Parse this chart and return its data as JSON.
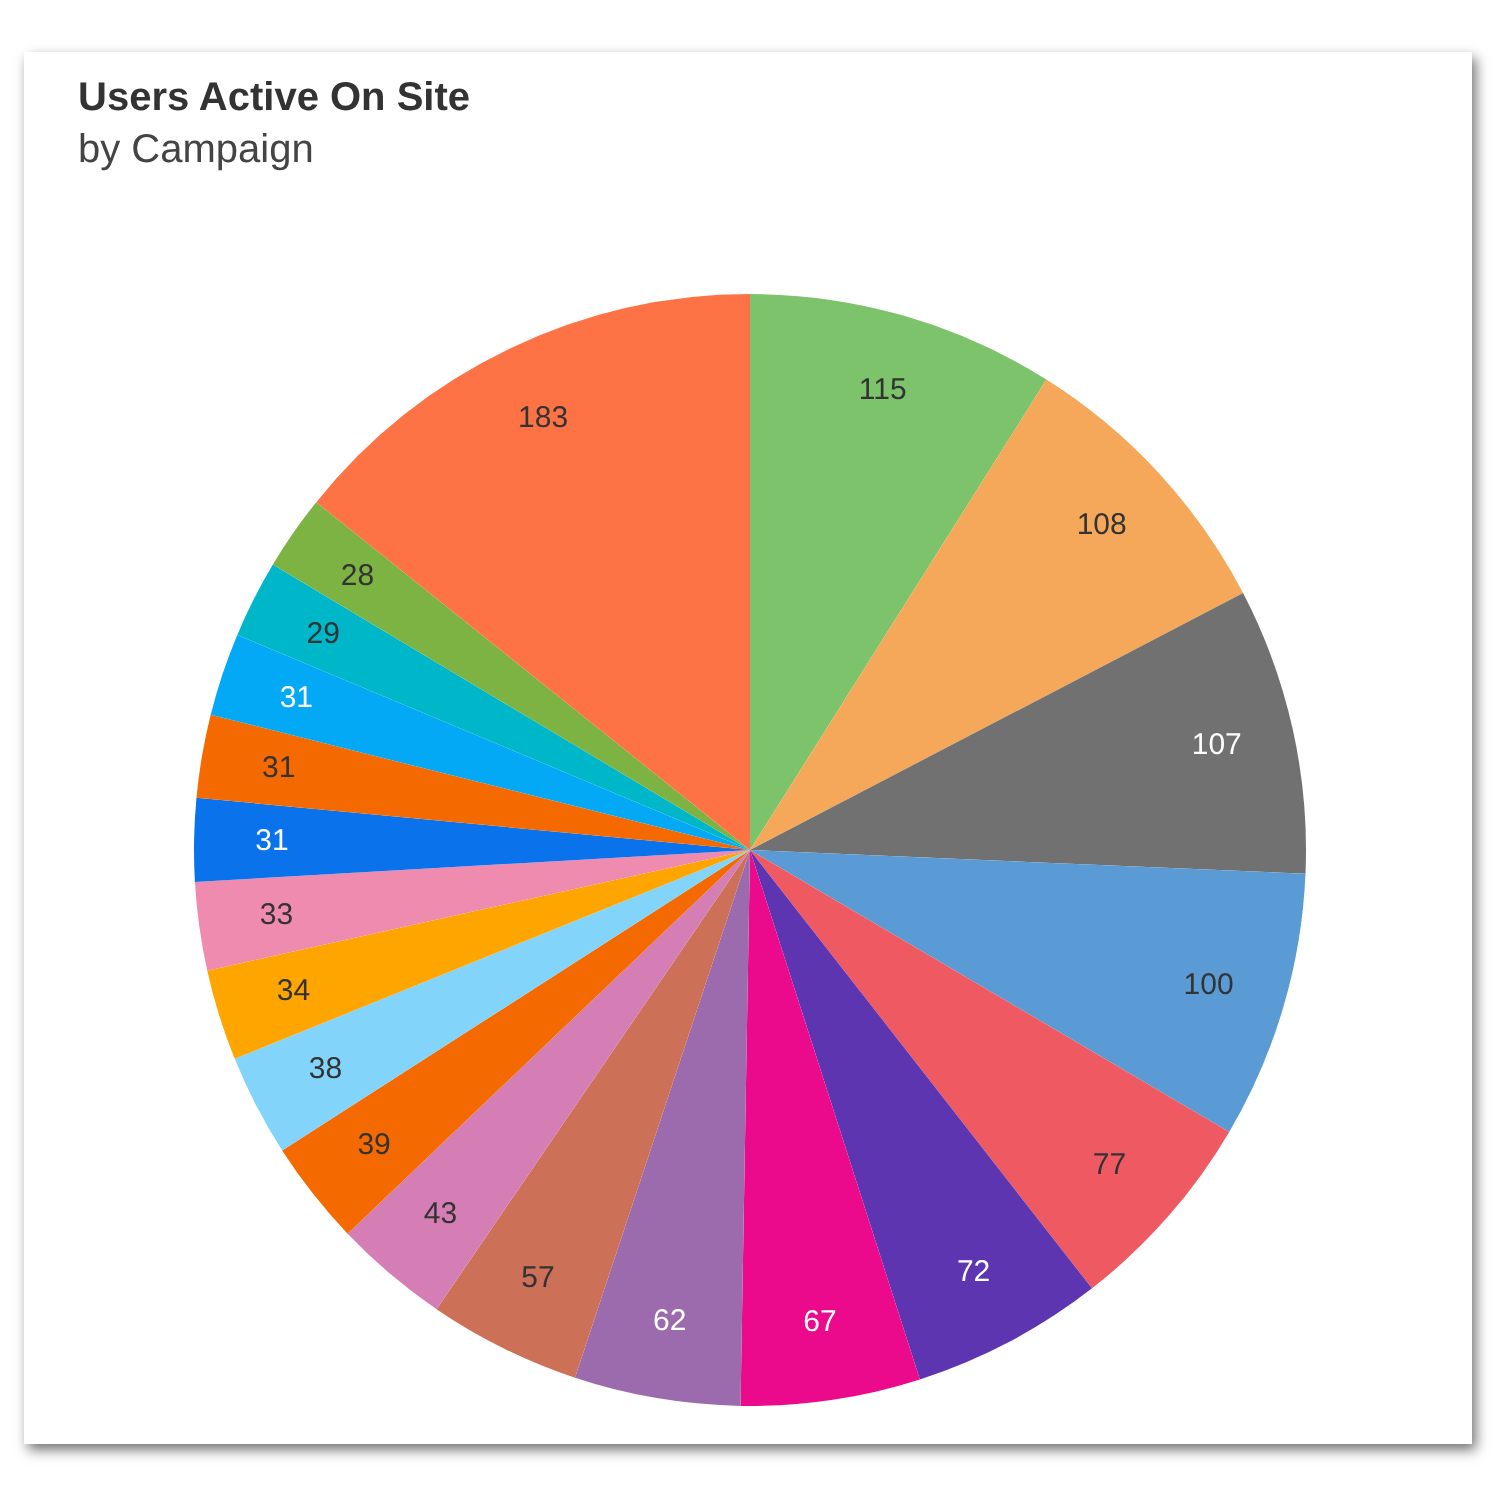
{
  "chart_data": {
    "type": "pie",
    "title": "Users Active On Site",
    "subtitle": "by Campaign",
    "categories": [
      null,
      null,
      null,
      null,
      null,
      null,
      null,
      null,
      null,
      null,
      null,
      null,
      null,
      null,
      null,
      null,
      null,
      null,
      null,
      null
    ],
    "values": [
      115,
      108,
      107,
      100,
      77,
      72,
      67,
      62,
      57,
      43,
      39,
      38,
      34,
      33,
      31,
      31,
      31,
      29,
      28,
      183
    ],
    "colors": [
      "#7dc36b",
      "#f6a85a",
      "#717171",
      "#5b9bd5",
      "#ef5a62",
      "#5e35b1",
      "#ec0a8c",
      "#9c6bad",
      "#cd7058",
      "#d57eb5",
      "#f56a00",
      "#82d4fa",
      "#ffa500",
      "#f08bb0",
      "#0a73ec",
      "#f56a00",
      "#03a9f4",
      "#00b7c9",
      "#7cb342",
      "#fe7345"
    ],
    "data_labels": true,
    "legend": false
  }
}
